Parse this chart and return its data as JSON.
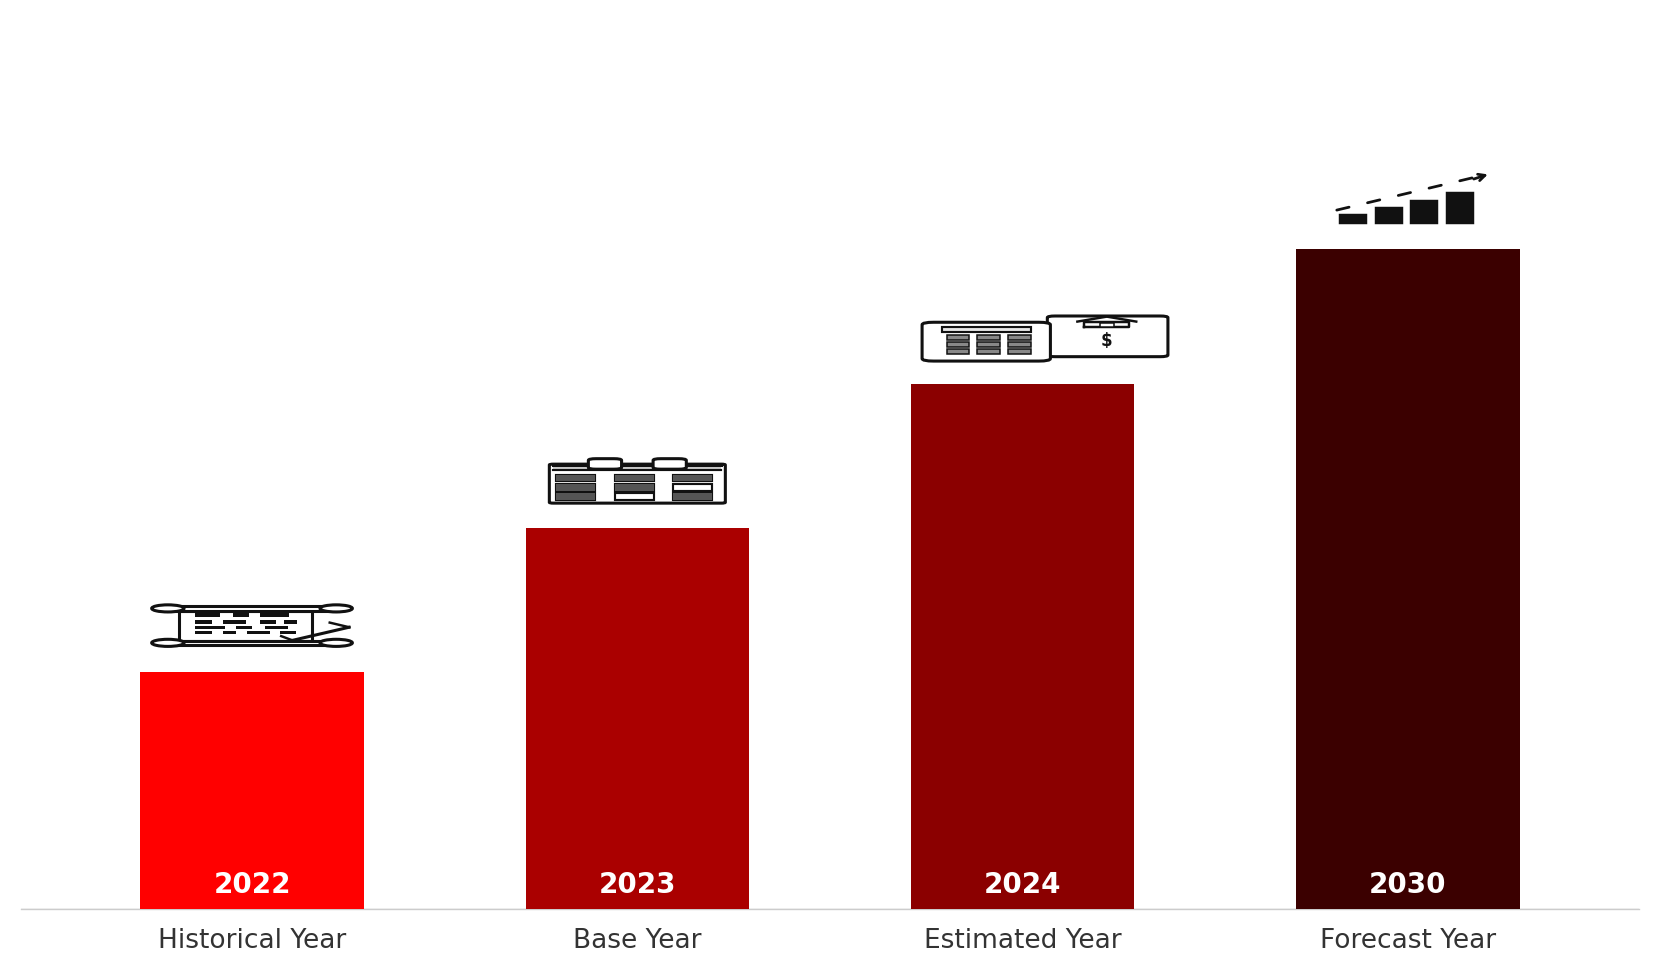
{
  "categories": [
    "Historical Year",
    "Base Year",
    "Estimated Year",
    "Forecast Year"
  ],
  "years": [
    "2022",
    "2023",
    "2024",
    "2030"
  ],
  "values": [
    2.8,
    4.5,
    6.2,
    7.8
  ],
  "bar_colors": [
    "#ff0000",
    "#aa0000",
    "#8b0000",
    "#3b0000"
  ],
  "background_color": "#ffffff",
  "year_label_color": "#ffffff",
  "year_label_fontsize": 20,
  "category_label_fontsize": 19,
  "bar_width": 0.58,
  "ylim": [
    0,
    10.5
  ],
  "xlim": [
    -0.6,
    3.6
  ]
}
